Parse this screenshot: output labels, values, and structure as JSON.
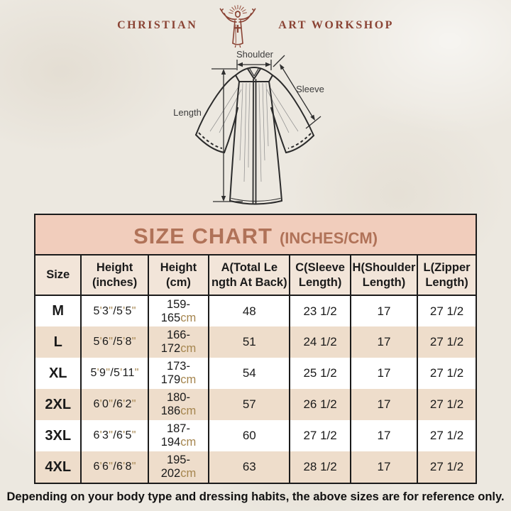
{
  "logo": {
    "left": "CHRISTIAN",
    "right": "ART WORKSHOP"
  },
  "diagram": {
    "labels": {
      "shoulder": "Shoulder",
      "sleeve": "Sleeve",
      "length": "Length"
    }
  },
  "size_chart": {
    "title": "SIZE CHART",
    "title_suffix": "(INCHES/CM)",
    "columns": [
      {
        "lines": [
          "Size"
        ]
      },
      {
        "lines": [
          "Height",
          "(inches)"
        ]
      },
      {
        "lines": [
          "Height",
          "(cm)"
        ]
      },
      {
        "lines": [
          "A(Total Le",
          "ngth At Back)"
        ]
      },
      {
        "lines": [
          "C(Sleeve",
          "Length)"
        ]
      },
      {
        "lines": [
          "H(Shoulder",
          "Length)"
        ]
      },
      {
        "lines": [
          "L(Zipper",
          "Length)"
        ]
      }
    ],
    "rows": [
      {
        "size": "M",
        "height_inches": "5'3\"/5'5\"",
        "height_cm": "159-165",
        "height_cm_unit": "cm",
        "total_length_back": "48",
        "sleeve_length": "23 1/2",
        "shoulder_length": "17",
        "zipper_length": "27 1/2"
      },
      {
        "size": "L",
        "height_inches": "5'6\"/5'8\"",
        "height_cm": "166-172",
        "height_cm_unit": "cm",
        "total_length_back": "51",
        "sleeve_length": "24 1/2",
        "shoulder_length": "17",
        "zipper_length": "27 1/2"
      },
      {
        "size": "XL",
        "height_inches": "5'9\"/5'11\"",
        "height_cm": "173-179",
        "height_cm_unit": "cm",
        "total_length_back": "54",
        "sleeve_length": "25 1/2",
        "shoulder_length": "17",
        "zipper_length": "27 1/2"
      },
      {
        "size": "2XL",
        "height_inches": "6'0\"/6'2\"",
        "height_cm": "180-186",
        "height_cm_unit": "cm",
        "total_length_back": "57",
        "sleeve_length": "26 1/2",
        "shoulder_length": "17",
        "zipper_length": "27 1/2"
      },
      {
        "size": "3XL",
        "height_inches": "6'3\"/6'5\"",
        "height_cm": "187-194",
        "height_cm_unit": "cm",
        "total_length_back": "60",
        "sleeve_length": "27 1/2",
        "shoulder_length": "17",
        "zipper_length": "27 1/2"
      },
      {
        "size": "4XL",
        "height_inches": "6'6\"/6'8\"",
        "height_cm": "195-202",
        "height_cm_unit": "cm",
        "total_length_back": "63",
        "sleeve_length": "28 1/2",
        "shoulder_length": "17",
        "zipper_length": "27 1/2"
      }
    ],
    "column_widths_pct": [
      10.4,
      15.2,
      13.8,
      18.4,
      13.8,
      15.2,
      13.2
    ]
  },
  "footer": {
    "note": "Depending on your body type and dressing habits, the above sizes are for reference only."
  },
  "colors": {
    "page-bg": "#ece8e0",
    "logo-maroon": "#8a4334",
    "band-bg": "#f1cdbc",
    "band-text": "#b07258",
    "header-row-bg": "#f2e5d9",
    "alt-row-bg": "#eeddcb",
    "row-bg": "#ffffff",
    "unit-tan": "#a5854e",
    "table-border": "#1b1b1b",
    "text-dark": "#1a1a1a"
  }
}
